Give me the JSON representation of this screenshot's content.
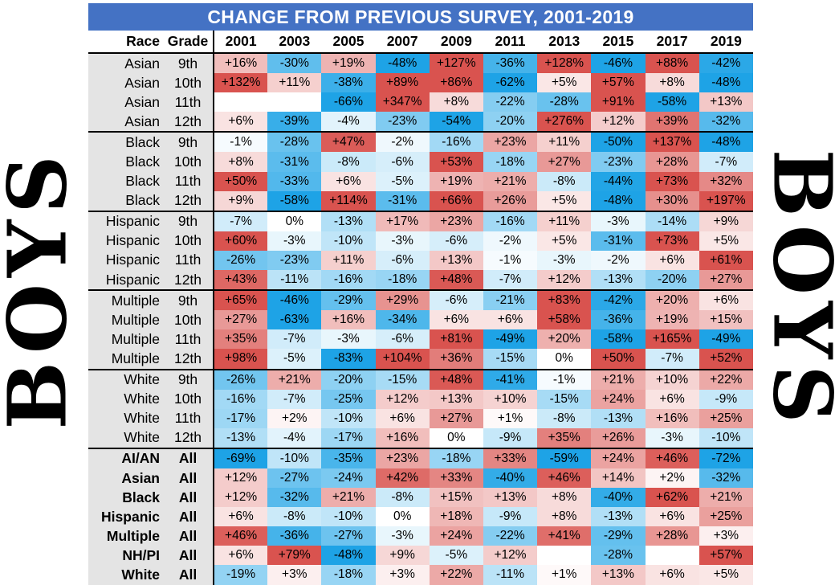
{
  "side_label": "BOYS",
  "chart_data": {
    "type": "table",
    "title": "CHANGE FROM PREVIOUS SURVEY, 2001-2019",
    "columns": [
      "Race",
      "Grade",
      "2001",
      "2003",
      "2005",
      "2007",
      "2009",
      "2011",
      "2013",
      "2015",
      "2017",
      "2019"
    ],
    "colors": {
      "positive": "#d9534f",
      "negative": "#1ea3e6",
      "neutral": "#ffffff"
    },
    "groups": [
      {
        "bold": false,
        "rows": [
          {
            "race": "Asian",
            "grade": "9th",
            "values": [
              "+16%",
              "-30%",
              "+19%",
              "-48%",
              "+127%",
              "-36%",
              "+128%",
              "-46%",
              "+88%",
              "-42%"
            ]
          },
          {
            "race": "Asian",
            "grade": "10th",
            "values": [
              "+132%",
              "+11%",
              "-38%",
              "+89%",
              "+86%",
              "-62%",
              "+5%",
              "+57%",
              "+8%",
              "-48%"
            ]
          },
          {
            "race": "Asian",
            "grade": "11th",
            "values": [
              "",
              "",
              "-66%",
              "+347%",
              "+8%",
              "-22%",
              "-28%",
              "+91%",
              "-58%",
              "+13%"
            ]
          },
          {
            "race": "Asian",
            "grade": "12th",
            "values": [
              "+6%",
              "-39%",
              "-4%",
              "-23%",
              "-54%",
              "-20%",
              "+276%",
              "+12%",
              "+39%",
              "-32%"
            ]
          }
        ]
      },
      {
        "bold": false,
        "rows": [
          {
            "race": "Black",
            "grade": "9th",
            "values": [
              "-1%",
              "-28%",
              "+47%",
              "-2%",
              "-16%",
              "+23%",
              "+11%",
              "-50%",
              "+137%",
              "-48%"
            ]
          },
          {
            "race": "Black",
            "grade": "10th",
            "values": [
              "+8%",
              "-31%",
              "-8%",
              "-6%",
              "+53%",
              "-18%",
              "+27%",
              "-23%",
              "+28%",
              "-7%"
            ]
          },
          {
            "race": "Black",
            "grade": "11th",
            "values": [
              "+50%",
              "-33%",
              "+6%",
              "-5%",
              "+19%",
              "+21%",
              "-8%",
              "-44%",
              "+73%",
              "+32%"
            ]
          },
          {
            "race": "Black",
            "grade": "12th",
            "values": [
              "+9%",
              "-58%",
              "+114%",
              "-31%",
              "+66%",
              "+26%",
              "+5%",
              "-48%",
              "+30%",
              "+197%"
            ]
          }
        ]
      },
      {
        "bold": false,
        "rows": [
          {
            "race": "Hispanic",
            "grade": "9th",
            "values": [
              "-7%",
              "0%",
              "-13%",
              "+17%",
              "+23%",
              "-16%",
              "+11%",
              "-3%",
              "-14%",
              "+9%"
            ]
          },
          {
            "race": "Hispanic",
            "grade": "10th",
            "values": [
              "+60%",
              "-3%",
              "-10%",
              "-3%",
              "-6%",
              "-2%",
              "+5%",
              "-31%",
              "+73%",
              "+5%"
            ]
          },
          {
            "race": "Hispanic",
            "grade": "11th",
            "values": [
              "-26%",
              "-23%",
              "+11%",
              "-6%",
              "+13%",
              "-1%",
              "-3%",
              "-2%",
              "+6%",
              "+61%"
            ]
          },
          {
            "race": "Hispanic",
            "grade": "12th",
            "values": [
              "+43%",
              "-11%",
              "-16%",
              "-18%",
              "+48%",
              "-7%",
              "+12%",
              "-13%",
              "-20%",
              "+27%"
            ]
          }
        ]
      },
      {
        "bold": false,
        "rows": [
          {
            "race": "Multiple",
            "grade": "9th",
            "values": [
              "+65%",
              "-46%",
              "-29%",
              "+29%",
              "-6%",
              "-21%",
              "+83%",
              "-42%",
              "+20%",
              "+6%"
            ]
          },
          {
            "race": "Multiple",
            "grade": "10th",
            "values": [
              "+27%",
              "-63%",
              "+16%",
              "-34%",
              "+6%",
              "+6%",
              "+58%",
              "-36%",
              "+19%",
              "+15%"
            ]
          },
          {
            "race": "Multiple",
            "grade": "11th",
            "values": [
              "+35%",
              "-7%",
              "-3%",
              "-6%",
              "+81%",
              "-49%",
              "+20%",
              "-58%",
              "+165%",
              "-49%"
            ]
          },
          {
            "race": "Multiple",
            "grade": "12th",
            "values": [
              "+98%",
              "-5%",
              "-83%",
              "+104%",
              "+36%",
              "-15%",
              "0%",
              "+50%",
              "-7%",
              "+52%"
            ]
          }
        ]
      },
      {
        "bold": false,
        "rows": [
          {
            "race": "White",
            "grade": "9th",
            "values": [
              "-26%",
              "+21%",
              "-20%",
              "-15%",
              "+48%",
              "-41%",
              "-1%",
              "+21%",
              "+10%",
              "+22%"
            ]
          },
          {
            "race": "White",
            "grade": "10th",
            "values": [
              "-16%",
              "-7%",
              "-25%",
              "+12%",
              "+13%",
              "+10%",
              "-15%",
              "+24%",
              "+6%",
              "-9%"
            ]
          },
          {
            "race": "White",
            "grade": "11th",
            "values": [
              "-17%",
              "+2%",
              "-10%",
              "+6%",
              "+27%",
              "+1%",
              "-8%",
              "-13%",
              "+16%",
              "+25%"
            ]
          },
          {
            "race": "White",
            "grade": "12th",
            "values": [
              "-13%",
              "-4%",
              "-17%",
              "+16%",
              "0%",
              "-9%",
              "+35%",
              "+26%",
              "-3%",
              "-10%"
            ]
          }
        ]
      },
      {
        "bold": true,
        "rows": [
          {
            "race": "AI/AN",
            "grade": "All",
            "values": [
              "-69%",
              "-10%",
              "-35%",
              "+23%",
              "-18%",
              "+33%",
              "-59%",
              "+24%",
              "+46%",
              "-72%"
            ]
          },
          {
            "race": "Asian",
            "grade": "All",
            "values": [
              "+12%",
              "-27%",
              "-24%",
              "+42%",
              "+33%",
              "-40%",
              "+46%",
              "+14%",
              "+2%",
              "-32%"
            ]
          },
          {
            "race": "Black",
            "grade": "All",
            "values": [
              "+12%",
              "-32%",
              "+21%",
              "-8%",
              "+15%",
              "+13%",
              "+8%",
              "-40%",
              "+62%",
              "+21%"
            ]
          },
          {
            "race": "Hispanic",
            "grade": "All",
            "values": [
              "+6%",
              "-8%",
              "-10%",
              "0%",
              "+18%",
              "-9%",
              "+8%",
              "-13%",
              "+6%",
              "+25%"
            ]
          },
          {
            "race": "Multiple",
            "grade": "All",
            "values": [
              "+46%",
              "-36%",
              "-27%",
              "-3%",
              "+24%",
              "-22%",
              "+41%",
              "-29%",
              "+28%",
              "+3%"
            ]
          },
          {
            "race": "NH/PI",
            "grade": "All",
            "values": [
              "+6%",
              "+79%",
              "-48%",
              "+9%",
              "-5%",
              "+12%",
              "",
              "-28%",
              "",
              "+57%"
            ]
          },
          {
            "race": "White",
            "grade": "All",
            "values": [
              "-19%",
              "+3%",
              "-18%",
              "+3%",
              "+22%",
              "-11%",
              "+1%",
              "+13%",
              "+6%",
              "+5%"
            ]
          }
        ]
      }
    ]
  }
}
